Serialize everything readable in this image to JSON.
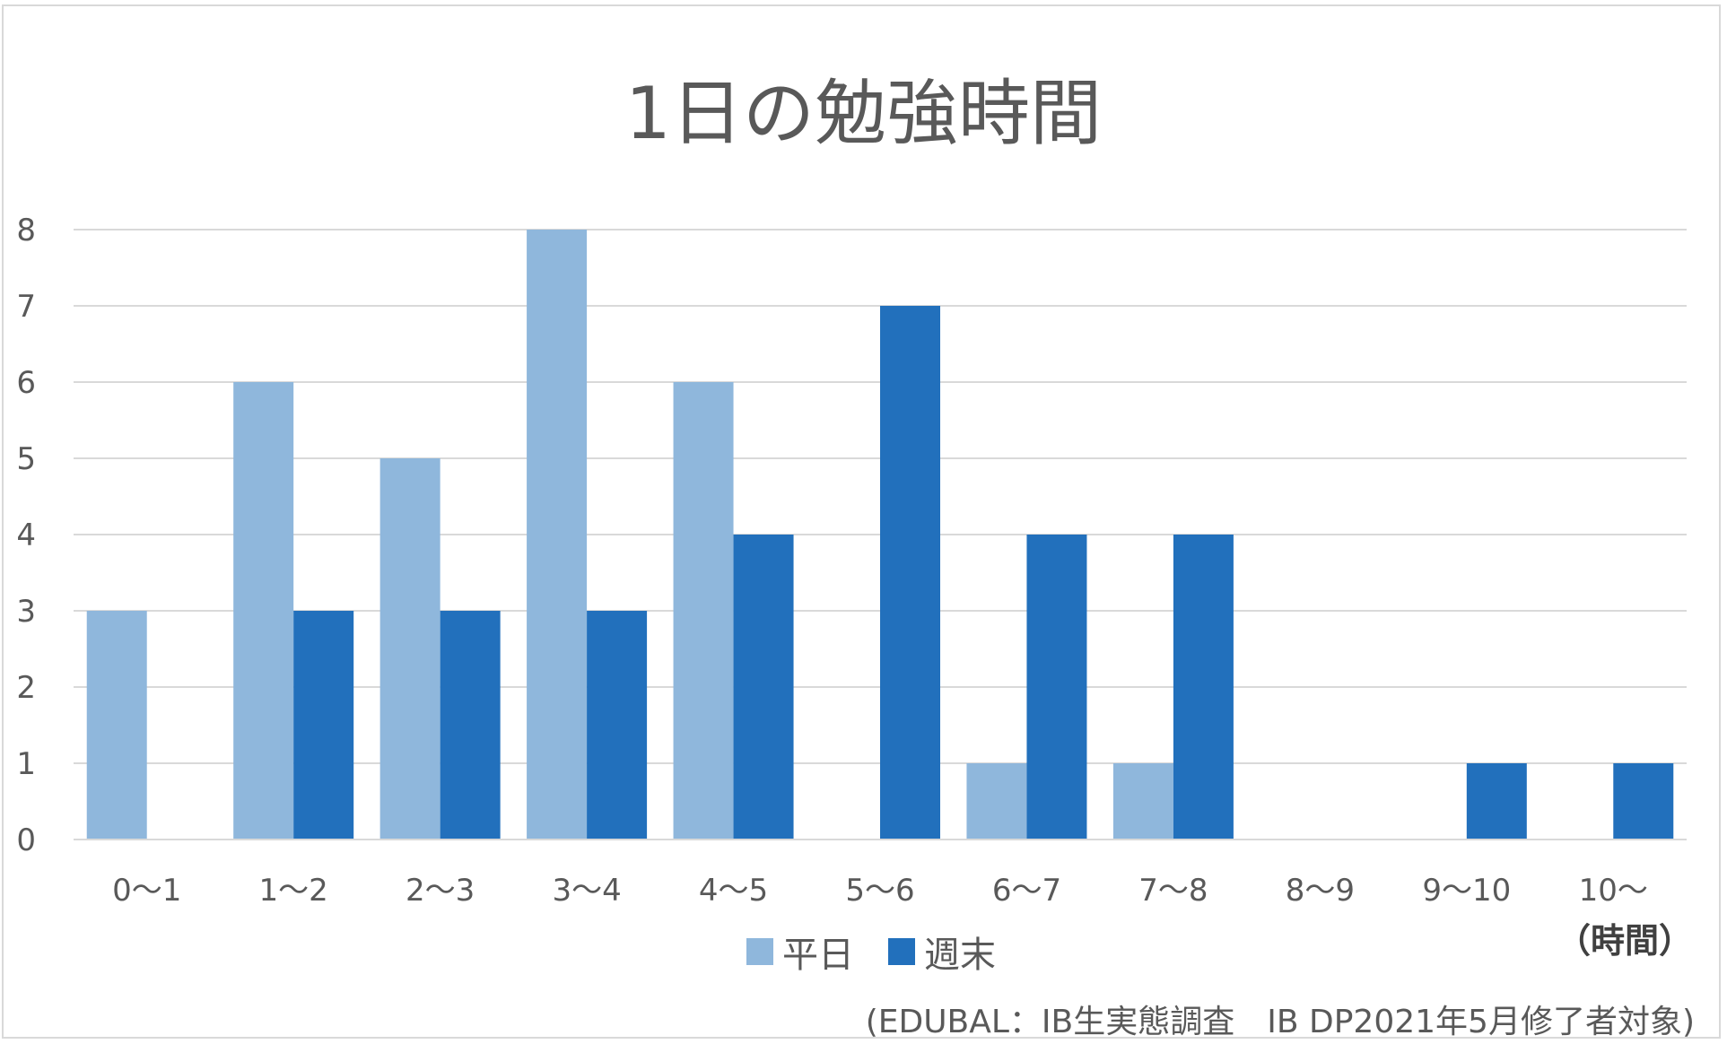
{
  "chart_data": {
    "type": "bar",
    "title": "1日の勉強時間",
    "categories": [
      "0〜1",
      "1〜2",
      "2〜3",
      "3〜4",
      "4〜5",
      "5〜6",
      "6〜7",
      "7〜8",
      "8〜9",
      "9〜10",
      "10〜"
    ],
    "series": [
      {
        "name": "平日",
        "color": "#8fb7dc",
        "values": [
          3,
          6,
          5,
          8,
          6,
          0,
          1,
          1,
          0,
          0,
          0
        ]
      },
      {
        "name": "週末",
        "color": "#2270bc",
        "values": [
          0,
          3,
          3,
          3,
          4,
          7,
          4,
          4,
          0,
          1,
          1
        ]
      }
    ],
    "ylim": [
      0,
      8
    ],
    "yticks": [
      0,
      1,
      2,
      3,
      4,
      5,
      6,
      7,
      8
    ],
    "grid": true,
    "legend": "bottom",
    "x_unit": "（時間）",
    "source": "(EDUBAL：IB生実態調査　IB DP2021年5月修了者対象)"
  }
}
